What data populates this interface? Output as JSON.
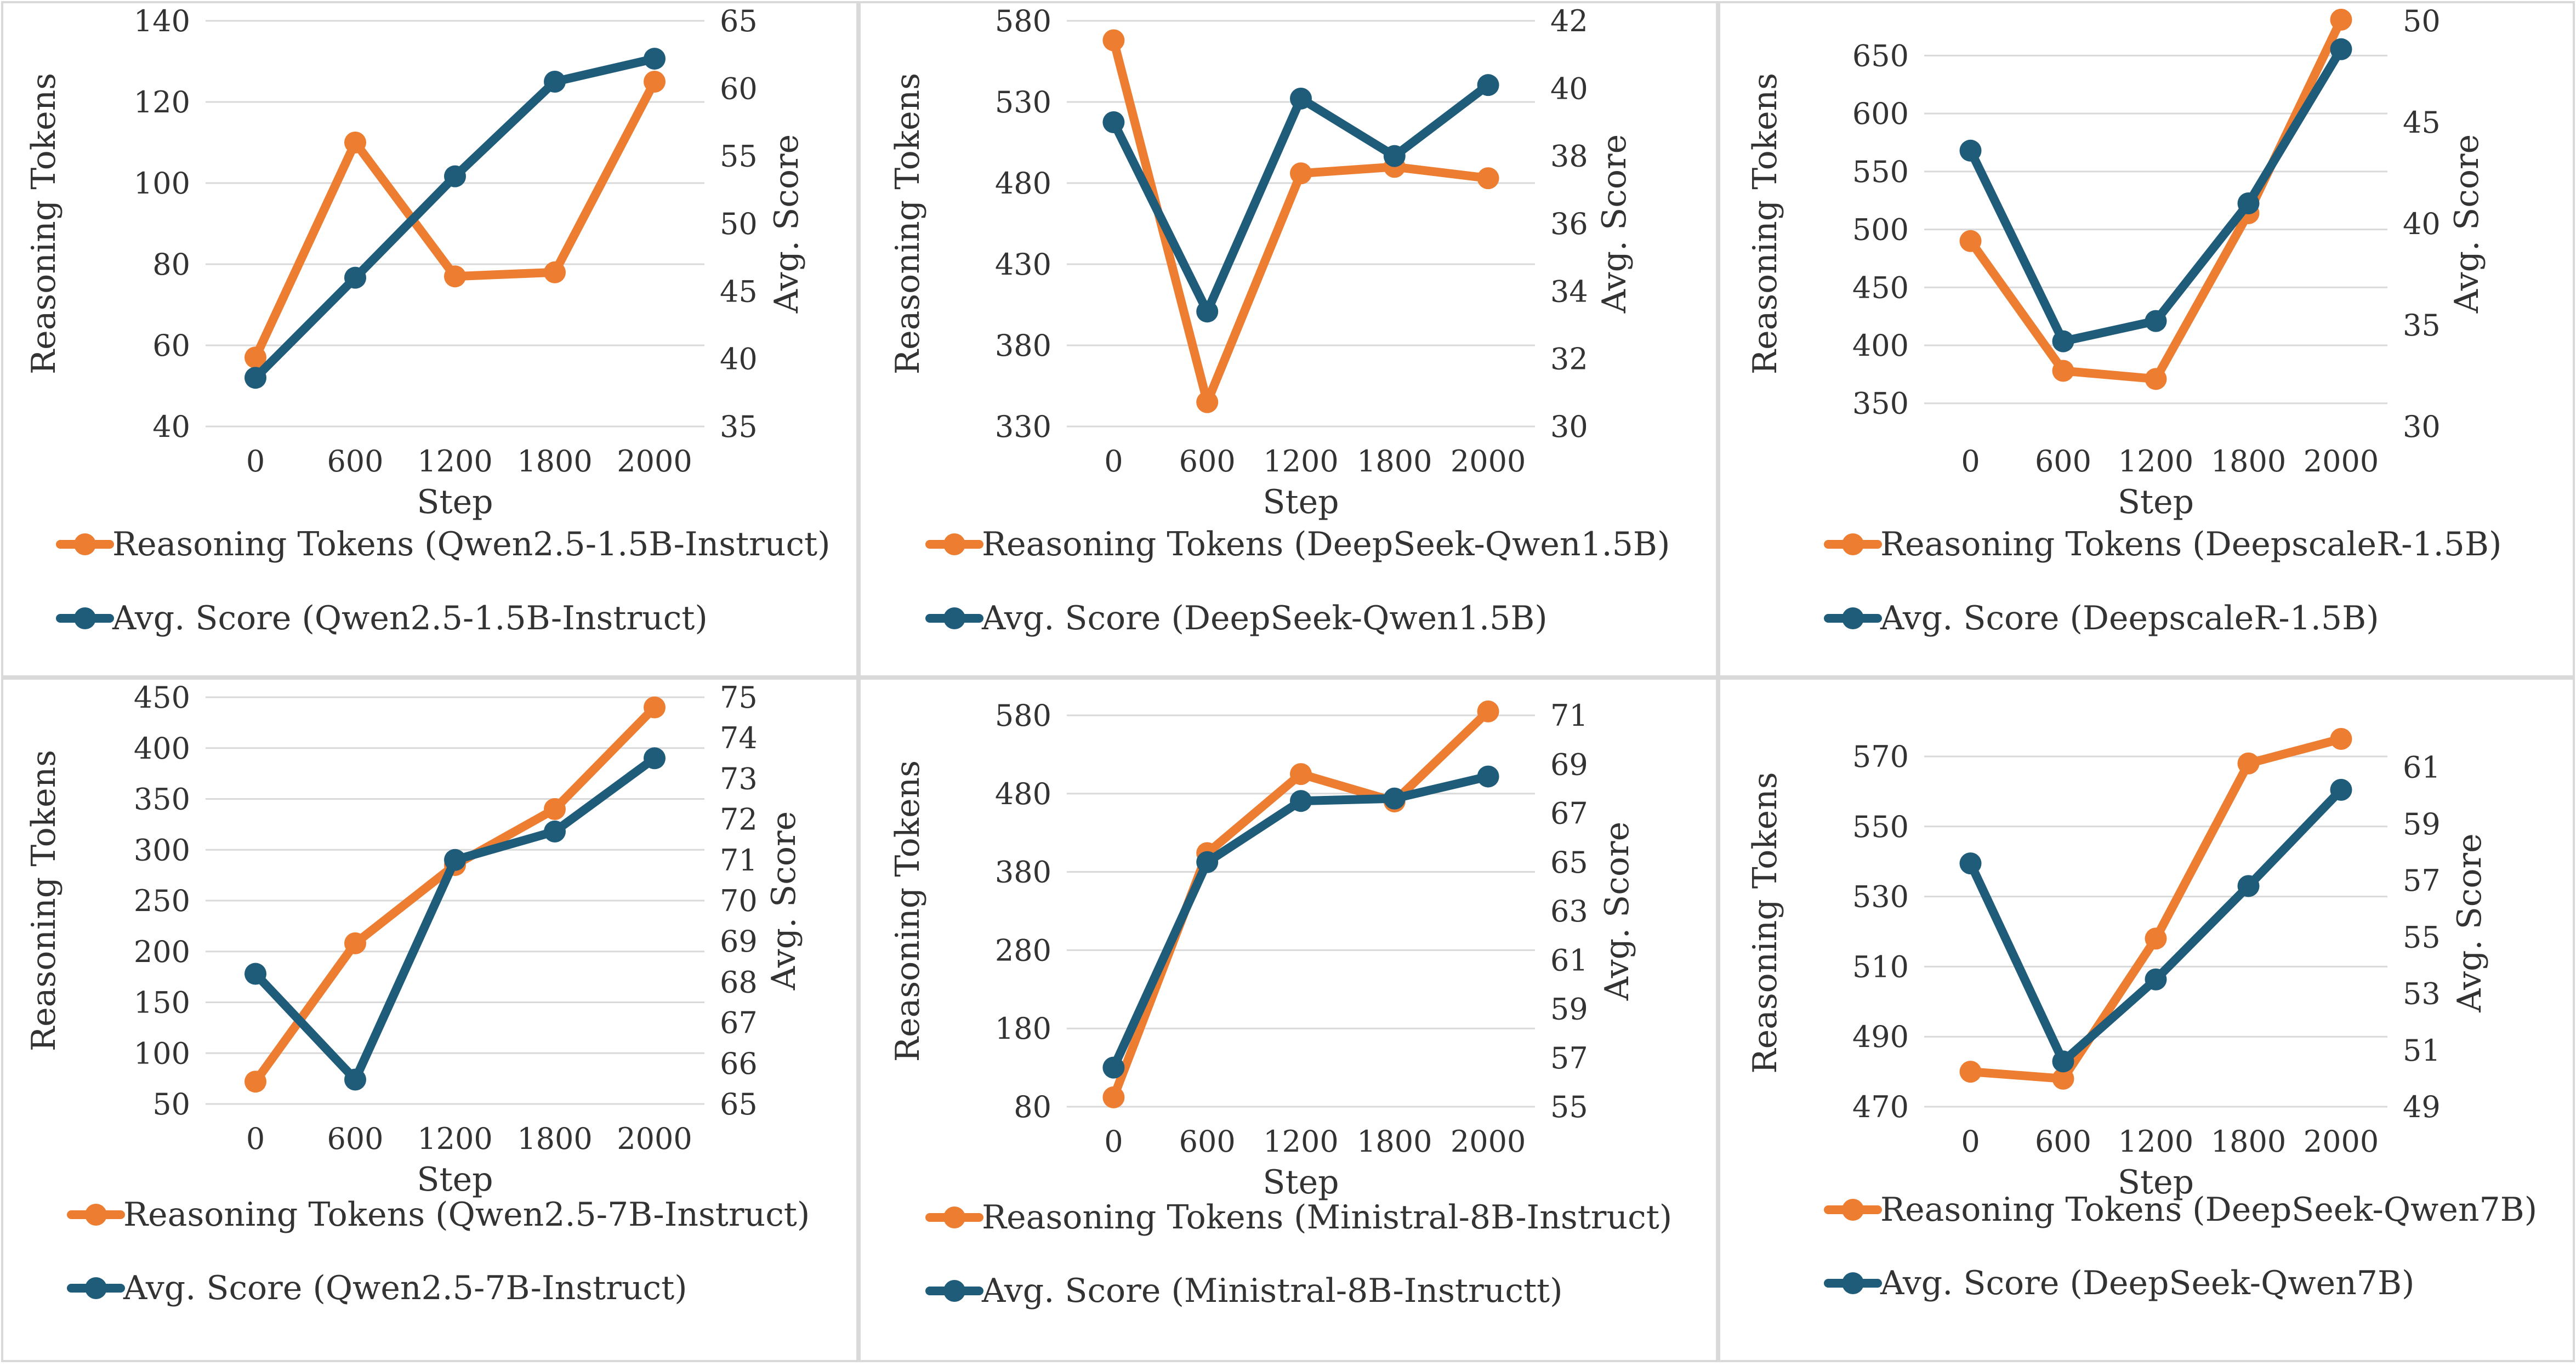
{
  "colors": {
    "tokens": "#ED7D31",
    "score": "#1F5C7A",
    "text": "#333333",
    "grid": "#D9D9D9"
  },
  "chart_data": [
    {
      "type": "line",
      "x": [
        0,
        600,
        1200,
        1800,
        2000
      ],
      "xticks": [
        "0",
        "600",
        "1200",
        "1800",
        "2000"
      ],
      "xlabel": "Step",
      "ylabel": "Reasoning Tokens",
      "y2label": "Avg. Score",
      "ylim": [
        40,
        140
      ],
      "yticks": [
        40,
        60,
        80,
        100,
        120,
        140
      ],
      "y2lim": [
        35,
        65
      ],
      "y2ticks": [
        35,
        40,
        45,
        50,
        55,
        60,
        65
      ],
      "series": [
        {
          "name": "Reasoning Tokens (Qwen2.5-1.5B-Instruct)",
          "axis": "left",
          "color": "#ED7D31",
          "values": [
            57,
            110,
            77,
            78,
            125
          ]
        },
        {
          "name": "Avg. Score (Qwen2.5-1.5B-Instruct)",
          "axis": "right",
          "color": "#1F5C7A",
          "values": [
            38.6,
            46,
            53.5,
            60.5,
            62.2
          ]
        }
      ]
    },
    {
      "type": "line",
      "x": [
        0,
        600,
        1200,
        1800,
        2000
      ],
      "xticks": [
        "0",
        "600",
        "1200",
        "1800",
        "2000"
      ],
      "xlabel": "Step",
      "ylabel": "Reasoning Tokens",
      "y2label": "Avg. Score",
      "ylim": [
        330,
        580
      ],
      "yticks": [
        330,
        380,
        430,
        480,
        530,
        580
      ],
      "y2lim": [
        30,
        42
      ],
      "y2ticks": [
        30,
        32,
        34,
        36,
        38,
        40,
        42
      ],
      "series": [
        {
          "name": "Reasoning Tokens (DeepSeek-Qwen1.5B)",
          "axis": "left",
          "color": "#ED7D31",
          "values": [
            568,
            345,
            486,
            490,
            483
          ]
        },
        {
          "name": "Avg. Score (DeepSeek-Qwen1.5B)",
          "axis": "right",
          "color": "#1F5C7A",
          "values": [
            39,
            33.4,
            39.7,
            38,
            40.1
          ]
        }
      ]
    },
    {
      "type": "line",
      "x": [
        0,
        600,
        1200,
        1800,
        2000
      ],
      "xticks": [
        "0",
        "600",
        "1200",
        "1800",
        "2000"
      ],
      "xlabel": "Step",
      "ylabel": "Reasoning Tokens",
      "y2label": "Avg. Score",
      "ylim": [
        330,
        680
      ],
      "yticks": [
        350,
        400,
        450,
        500,
        550,
        600,
        650
      ],
      "y2lim": [
        30,
        50
      ],
      "y2ticks": [
        30,
        35,
        40,
        45,
        50
      ],
      "series": [
        {
          "name": "Reasoning Tokens (DeepscaleR-1.5B)",
          "axis": "left",
          "color": "#ED7D31",
          "values": [
            490,
            378,
            371,
            514,
            681
          ]
        },
        {
          "name": "Avg. Score (DeepscaleR-1.5B)",
          "axis": "right",
          "color": "#1F5C7A",
          "values": [
            43.6,
            34.2,
            35.2,
            41,
            48.6
          ]
        }
      ]
    },
    {
      "type": "line",
      "x": [
        0,
        600,
        1200,
        1800,
        2000
      ],
      "xticks": [
        "0",
        "600",
        "1200",
        "1800",
        "2000"
      ],
      "xlabel": "Step",
      "ylabel": "Reasoning Tokens",
      "y2label": "Avg. Score",
      "ylim": [
        50,
        450
      ],
      "yticks": [
        50,
        100,
        150,
        200,
        250,
        300,
        350,
        400,
        450
      ],
      "y2lim": [
        65,
        75
      ],
      "y2ticks": [
        65,
        66,
        67,
        68,
        69,
        70,
        71,
        72,
        73,
        74,
        75
      ],
      "series": [
        {
          "name": "Reasoning Tokens (Qwen2.5-7B-Instruct)",
          "axis": "left",
          "color": "#ED7D31",
          "values": [
            72,
            208,
            285,
            340,
            440
          ]
        },
        {
          "name": "Avg. Score (Qwen2.5-7B-Instruct)",
          "axis": "right",
          "color": "#1F5C7A",
          "values": [
            68.2,
            65.6,
            71,
            71.7,
            73.5
          ]
        }
      ]
    },
    {
      "type": "line",
      "x": [
        0,
        600,
        1200,
        1800,
        2000
      ],
      "xticks": [
        "0",
        "600",
        "1200",
        "1800",
        "2000"
      ],
      "xlabel": "Step",
      "ylabel": "Reasoning Tokens",
      "y2label": "Avg. Score",
      "ylim": [
        80,
        580
      ],
      "yticks": [
        80,
        180,
        280,
        380,
        480,
        580
      ],
      "y2lim": [
        55,
        71
      ],
      "y2ticks": [
        55,
        57,
        59,
        61,
        63,
        65,
        67,
        69,
        71
      ],
      "series": [
        {
          "name": "Reasoning Tokens (Ministral-8B-Instruct)",
          "axis": "left",
          "color": "#ED7D31",
          "values": [
            92,
            404,
            505,
            470,
            585
          ]
        },
        {
          "name": "Avg. Score (Ministral-8B-Instructt)",
          "axis": "right",
          "color": "#1F5C7A",
          "values": [
            56.6,
            65,
            67.5,
            67.6,
            68.5
          ]
        }
      ]
    },
    {
      "type": "line",
      "x": [
        0,
        600,
        1200,
        1800,
        2000
      ],
      "xticks": [
        "0",
        "600",
        "1200",
        "1800",
        "2000"
      ],
      "xlabel": "Step",
      "ylabel": "Reasoning Tokens",
      "y2label": "Avg. Score",
      "ylim": [
        470,
        575
      ],
      "yticks": [
        470,
        490,
        510,
        530,
        550,
        570
      ],
      "y2lim": [
        49,
        62
      ],
      "y2ticks": [
        49,
        51,
        53,
        55,
        57,
        59,
        61
      ],
      "series": [
        {
          "name": "Reasoning Tokens (DeepSeek-Qwen7B)",
          "axis": "left",
          "color": "#ED7D31",
          "values": [
            480,
            478,
            518,
            568,
            575
          ]
        },
        {
          "name": "Avg. Score (DeepSeek-Qwen7B)",
          "axis": "right",
          "color": "#1F5C7A",
          "values": [
            57.6,
            50.6,
            53.5,
            56.8,
            60.2
          ]
        }
      ]
    }
  ]
}
